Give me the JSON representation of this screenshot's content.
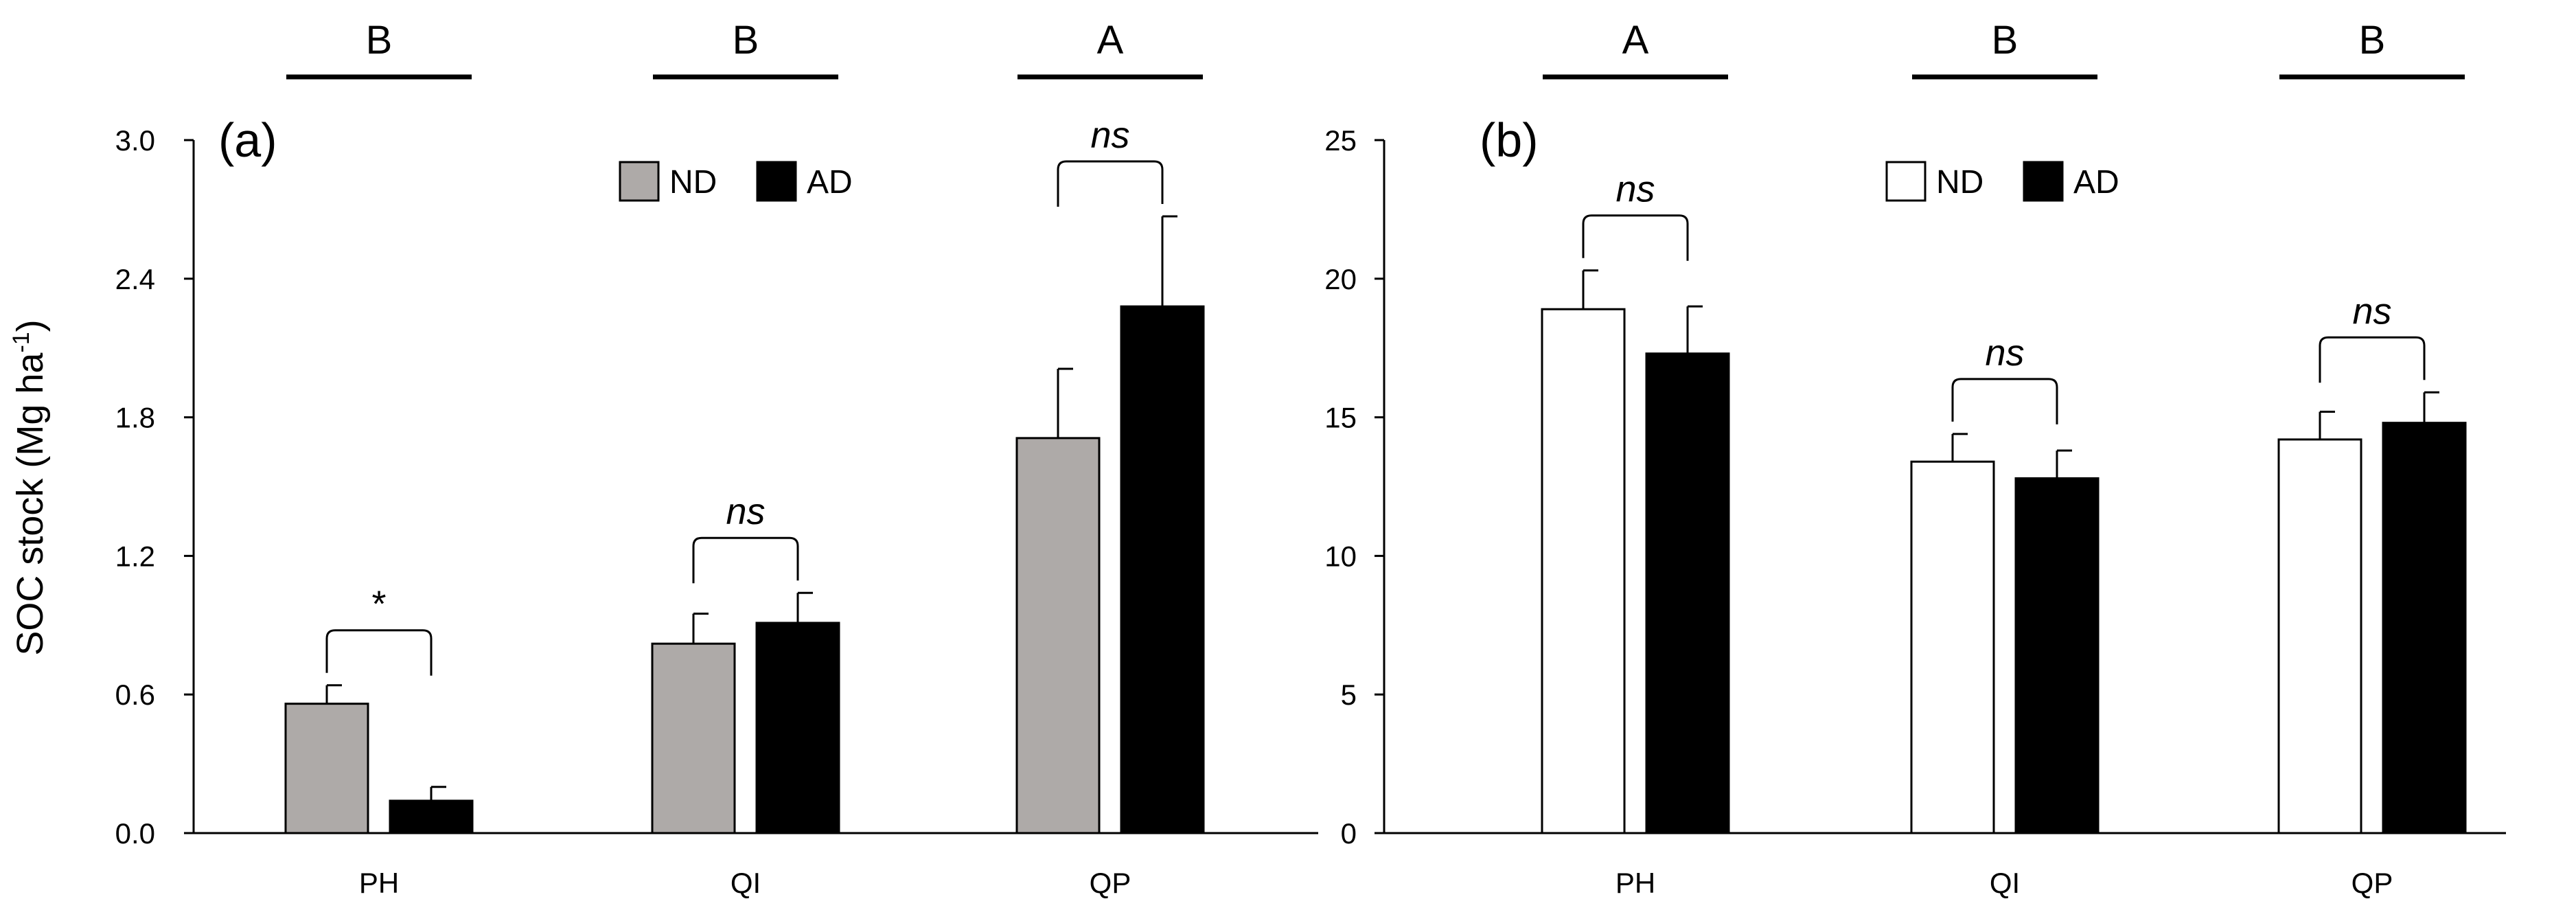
{
  "figure": {
    "ylabel_main": "SOC stock (Mg ha",
    "ylabel_sup": "-1",
    "ylabel_end": ")"
  },
  "chart_data": [
    {
      "type": "bar",
      "panel_label": "(a)",
      "categories": [
        "PH",
        "QI",
        "QP"
      ],
      "ylim": [
        0,
        3.0
      ],
      "yticks": [
        "0.0",
        "0.6",
        "1.2",
        "1.8",
        "2.4",
        "3.0"
      ],
      "series": [
        {
          "name": "ND",
          "color": "#aeaaa8",
          "values": [
            0.56,
            0.82,
            1.71
          ],
          "errors": [
            0.08,
            0.13,
            0.3
          ]
        },
        {
          "name": "AD",
          "color": "#000000",
          "values": [
            0.14,
            0.91,
            2.28
          ],
          "errors": [
            0.06,
            0.13,
            0.39
          ]
        }
      ],
      "group_letters": [
        "B",
        "B",
        "A"
      ],
      "significance": [
        "*",
        "ns",
        "ns"
      ],
      "legend": [
        "ND",
        "AD"
      ]
    },
    {
      "type": "bar",
      "panel_label": "(b)",
      "categories": [
        "PH",
        "QI",
        "QP"
      ],
      "ylim": [
        0,
        25
      ],
      "yticks": [
        "0",
        "5",
        "10",
        "15",
        "20",
        "25"
      ],
      "series": [
        {
          "name": "ND",
          "color": "#ffffff",
          "values": [
            18.9,
            13.4,
            14.2
          ],
          "errors": [
            1.4,
            1.0,
            1.0
          ]
        },
        {
          "name": "AD",
          "color": "#000000",
          "values": [
            17.3,
            12.8,
            14.8
          ],
          "errors": [
            1.7,
            1.0,
            1.1
          ]
        }
      ],
      "group_letters": [
        "A",
        "B",
        "B"
      ],
      "significance": [
        "ns",
        "ns",
        "ns"
      ],
      "legend": [
        "ND",
        "AD"
      ]
    }
  ]
}
